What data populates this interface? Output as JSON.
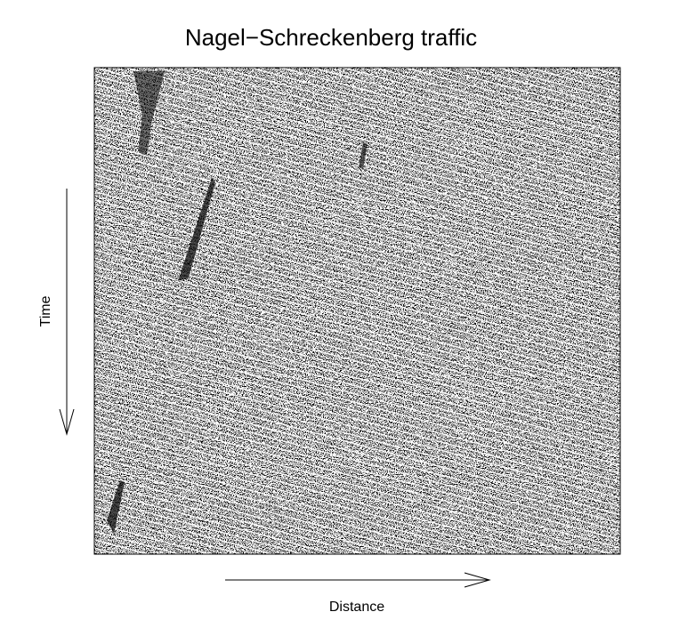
{
  "title": "Nagel−Schreckenberg traffic",
  "x_label": "Distance",
  "y_label": "Time"
}
